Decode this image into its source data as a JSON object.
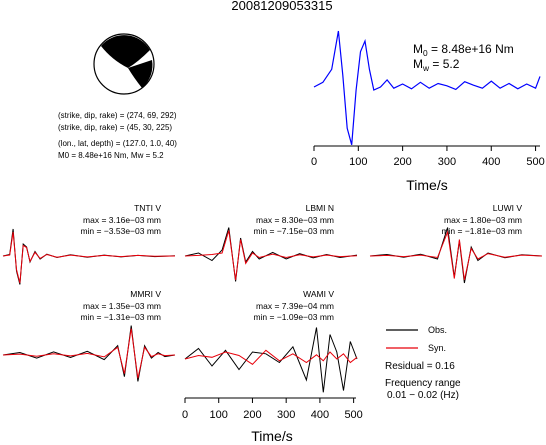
{
  "figure": {
    "title": "20081209053315",
    "mechanism": {
      "line1": "(strike, dip, rake) = (274, 69, 292)",
      "line2": "(strike, dip, rake) = (45, 30, 225)",
      "line3": "(lon., lat, depth) = (127.0, 1.0, 40)",
      "line4": "M0 = 8.48e+16 Nm, Mw = 5.2"
    },
    "stf": {
      "m0_label": "M0 = 8.48e+16 Nm",
      "mw_label": "Mw = 5.2",
      "xlabel": "Time/s"
    },
    "bottom_xlabel": "Time/s",
    "legend": {
      "obs": "Obs.",
      "syn": "Syn.",
      "residual": "Residual = 0.16",
      "freq_title": "Frequency range",
      "freq_value": "0.01 − 0.02 (Hz)"
    },
    "stations": [
      {
        "name": "TNTI V",
        "max": "max = 3.16e−03 mm",
        "min": "min = −3.53e−03 mm"
      },
      {
        "name": "LBMI N",
        "max": "max = 8.30e−03 mm",
        "min": "min = −7.15e−03 mm"
      },
      {
        "name": "LUWI V",
        "max": "max = 1.80e−03 mm",
        "min": "min = −1.81e−03 mm"
      },
      {
        "name": "MMRI V",
        "max": "max = 1.35e−03 mm",
        "min": "min = −1.31e−03 mm"
      },
      {
        "name": "WAMI V",
        "max": "max = 7.39e−04 mm",
        "min": "min = −1.09e−03 mm"
      }
    ],
    "colors": {
      "obs": "#000000",
      "syn": "#e8000b",
      "stf": "#0000ff"
    }
  },
  "chart_data": [
    {
      "type": "line",
      "title": "",
      "xlabel": "Time/s",
      "ylabel": "",
      "xlim": [
        0,
        510
      ],
      "ylim": [
        -1,
        1
      ],
      "xticks": [
        0,
        100,
        200,
        300,
        400,
        500
      ],
      "series": [
        {
          "x": [
            0,
            20,
            40,
            55,
            65,
            75,
            85,
            95,
            105,
            115,
            125,
            135,
            150,
            165,
            180,
            200,
            220,
            240,
            260,
            280,
            300,
            320,
            340,
            360,
            380,
            400,
            420,
            440,
            460,
            480,
            500,
            510
          ],
          "y": [
            0.0,
            0.08,
            0.3,
            0.95,
            0.2,
            -0.7,
            -0.98,
            -0.05,
            0.6,
            0.78,
            0.3,
            -0.05,
            0.0,
            0.12,
            -0.02,
            0.05,
            -0.03,
            0.08,
            -0.02,
            0.06,
            0.02,
            -0.04,
            0.09,
            0.03,
            -0.02,
            0.1,
            -0.02,
            0.06,
            -0.03,
            0.05,
            -0.02,
            0.18
          ]
        }
      ]
    },
    {
      "type": "line",
      "title": "TNTI V",
      "xlim": [
        0,
        510
      ],
      "ylim": [
        -1,
        1
      ],
      "series": [
        {
          "name": "Obs.",
          "x": [
            0,
            20,
            30,
            40,
            50,
            60,
            70,
            80,
            95,
            110,
            130,
            160,
            200,
            250,
            300,
            350,
            400,
            450,
            510
          ],
          "y": [
            0.0,
            0.05,
            0.9,
            -0.5,
            -0.95,
            0.4,
            0.3,
            -0.2,
            0.15,
            -0.1,
            0.06,
            -0.05,
            0.04,
            -0.04,
            0.03,
            -0.03,
            0.02,
            -0.02,
            0.01
          ]
        },
        {
          "name": "Syn.",
          "x": [
            0,
            20,
            30,
            40,
            50,
            60,
            70,
            80,
            95,
            110,
            130,
            160,
            200,
            250,
            300,
            350,
            400,
            450,
            510
          ],
          "y": [
            0.0,
            0.03,
            0.8,
            -0.45,
            -0.9,
            0.35,
            0.28,
            -0.18,
            0.12,
            -0.08,
            0.05,
            -0.04,
            0.03,
            -0.03,
            0.02,
            -0.02,
            0.02,
            -0.01,
            0.0
          ]
        }
      ]
    },
    {
      "type": "line",
      "title": "LBMI N",
      "xlim": [
        0,
        510
      ],
      "ylim": [
        -1,
        1
      ],
      "series": [
        {
          "name": "Obs.",
          "x": [
            0,
            40,
            80,
            110,
            130,
            150,
            165,
            180,
            200,
            220,
            260,
            300,
            340,
            380,
            420,
            460,
            510
          ],
          "y": [
            0.0,
            0.1,
            -0.15,
            0.2,
            0.95,
            -0.85,
            0.6,
            -0.2,
            0.15,
            -0.1,
            0.12,
            -0.1,
            0.08,
            -0.06,
            0.05,
            -0.05,
            0.03
          ]
        },
        {
          "name": "Syn.",
          "x": [
            0,
            40,
            80,
            110,
            130,
            150,
            165,
            180,
            200,
            220,
            260,
            300,
            340,
            380,
            420,
            460,
            510
          ],
          "y": [
            0.0,
            0.02,
            0.05,
            0.1,
            0.85,
            -0.8,
            0.55,
            -0.25,
            0.1,
            -0.05,
            0.06,
            -0.05,
            0.04,
            -0.03,
            0.03,
            -0.02,
            0.01
          ]
        }
      ]
    },
    {
      "type": "line",
      "title": "LUWI V",
      "xlim": [
        0,
        510
      ],
      "ylim": [
        -1,
        1
      ],
      "series": [
        {
          "name": "Obs.",
          "x": [
            0,
            50,
            100,
            150,
            200,
            230,
            250,
            265,
            280,
            300,
            320,
            350,
            400,
            450,
            510
          ],
          "y": [
            0.0,
            0.05,
            -0.04,
            0.06,
            -0.1,
            0.95,
            -0.7,
            0.5,
            -0.9,
            0.3,
            -0.15,
            0.1,
            -0.06,
            0.04,
            0.0
          ]
        },
        {
          "name": "Syn.",
          "x": [
            0,
            50,
            100,
            150,
            200,
            230,
            250,
            265,
            280,
            300,
            320,
            350,
            400,
            450,
            510
          ],
          "y": [
            0.0,
            0.02,
            -0.02,
            0.03,
            -0.05,
            0.8,
            -0.75,
            0.55,
            -0.8,
            0.25,
            -0.1,
            0.08,
            -0.04,
            0.03,
            0.0
          ]
        }
      ]
    },
    {
      "type": "line",
      "title": "MMRI V",
      "xlim": [
        0,
        510
      ],
      "ylim": [
        -1,
        1
      ],
      "series": [
        {
          "name": "Obs.",
          "x": [
            0,
            50,
            100,
            150,
            200,
            250,
            300,
            340,
            360,
            380,
            400,
            420,
            440,
            460,
            480,
            510
          ],
          "y": [
            0.0,
            0.08,
            -0.1,
            0.1,
            -0.08,
            0.12,
            -0.15,
            0.3,
            -0.7,
            0.95,
            -0.85,
            0.3,
            -0.1,
            0.08,
            -0.05,
            0.0
          ]
        },
        {
          "name": "Syn.",
          "x": [
            0,
            50,
            100,
            150,
            200,
            250,
            300,
            340,
            360,
            380,
            400,
            420,
            440,
            460,
            480,
            510
          ],
          "y": [
            0.0,
            0.03,
            -0.04,
            0.04,
            -0.03,
            0.05,
            -0.06,
            0.25,
            -0.6,
            0.85,
            -0.75,
            0.25,
            -0.05,
            0.04,
            -0.02,
            0.0
          ]
        }
      ]
    },
    {
      "type": "line",
      "title": "WAMI V",
      "xlim": [
        0,
        510
      ],
      "ylim": [
        -1,
        1
      ],
      "xlabel": "Time/s",
      "xticks": [
        0,
        100,
        200,
        300,
        400,
        500
      ],
      "series": [
        {
          "name": "Obs.",
          "x": [
            0,
            40,
            80,
            120,
            160,
            200,
            240,
            280,
            320,
            360,
            390,
            410,
            430,
            450,
            470,
            490,
            510
          ],
          "y": [
            0.0,
            0.3,
            -0.2,
            0.25,
            -0.3,
            0.2,
            0.15,
            -0.1,
            0.35,
            -0.6,
            0.9,
            -0.95,
            0.7,
            0.2,
            -0.9,
            0.5,
            0.0
          ]
        },
        {
          "name": "Syn.",
          "x": [
            0,
            40,
            80,
            120,
            160,
            200,
            240,
            280,
            320,
            360,
            390,
            410,
            430,
            450,
            470,
            490,
            510
          ],
          "y": [
            0.0,
            0.1,
            0.05,
            0.2,
            0.1,
            -0.15,
            0.25,
            -0.05,
            0.15,
            -0.1,
            0.12,
            -0.05,
            0.2,
            0.0,
            0.15,
            -0.1,
            0.05
          ]
        }
      ]
    }
  ]
}
